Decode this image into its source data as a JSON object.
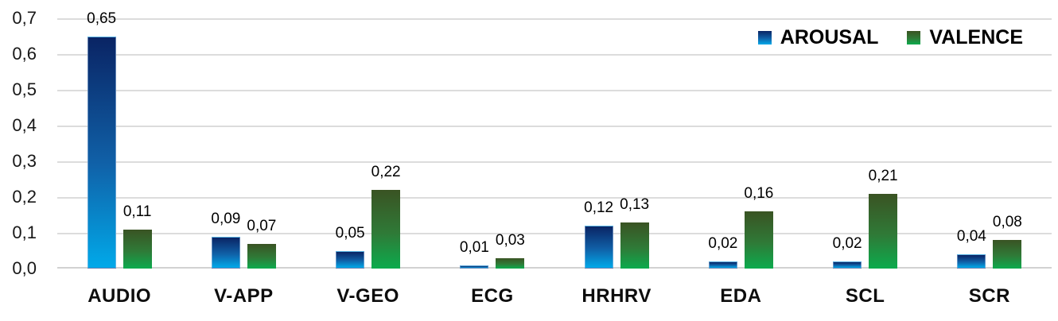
{
  "chart_data": {
    "type": "bar",
    "title": "",
    "categories": [
      "AUDIO",
      "V-APP",
      "V-GEO",
      "ECG",
      "HRHRV",
      "EDA",
      "SCL",
      "SCR"
    ],
    "series": [
      {
        "name": "AROUSAL",
        "values": [
          0.65,
          0.09,
          0.05,
          0.01,
          0.12,
          0.02,
          0.02,
          0.04
        ],
        "labels": [
          "0,65",
          "0,09",
          "0,05",
          "0,01",
          "0,12",
          "0,02",
          "0,02",
          "0,04"
        ],
        "gradient": [
          "#0A2464",
          "#1061A8",
          "#01A9E9"
        ]
      },
      {
        "name": "VALENCE",
        "values": [
          0.11,
          0.07,
          0.22,
          0.03,
          0.13,
          0.16,
          0.21,
          0.08
        ],
        "labels": [
          "0,11",
          "0,07",
          "0,22",
          "0,03",
          "0,13",
          "0,16",
          "0,21",
          "0,08"
        ],
        "gradient": [
          "#3A5323",
          "#2F7A37",
          "#0CAB4D"
        ]
      }
    ],
    "xlabel": "",
    "ylabel": "",
    "ylim": [
      0,
      0.7
    ],
    "yticks": {
      "values": [
        0.0,
        0.1,
        0.2,
        0.3,
        0.4,
        0.5,
        0.6,
        0.7
      ],
      "labels": [
        "0,0",
        "0,1",
        "0,2",
        "0,3",
        "0,4",
        "0,5",
        "0,6",
        "0,7"
      ]
    },
    "decimal_separator": ",",
    "grid": "horizontal",
    "legend_position": "top-right"
  },
  "colors": {
    "background": "#FFFFFF",
    "gridline": "#DCDCDC",
    "text": "#000000",
    "arousal_top": "#0A2464",
    "arousal_bottom": "#01A9E9",
    "valence_top": "#3A5323",
    "valence_bottom": "#0CAB4D"
  }
}
